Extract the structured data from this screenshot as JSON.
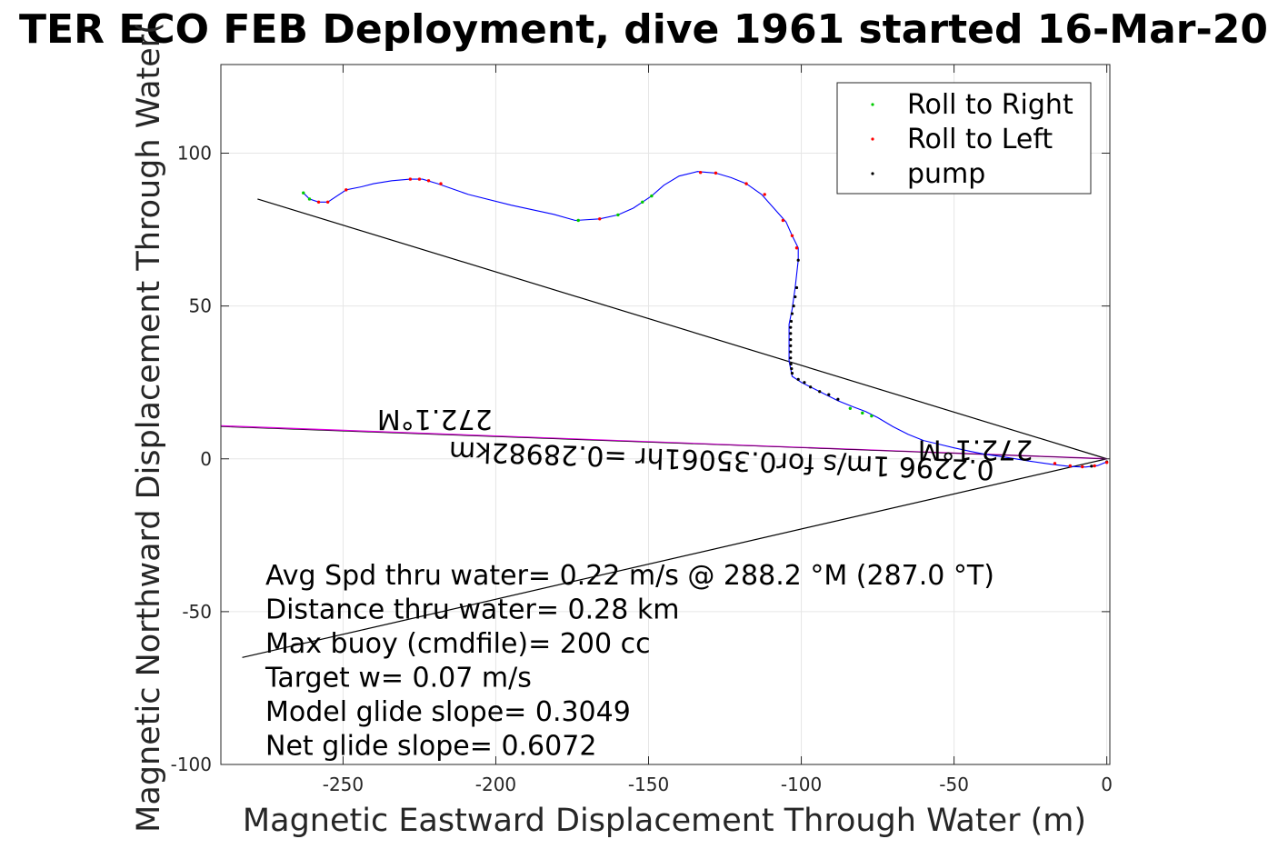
{
  "chart_data": {
    "type": "line",
    "title": "TER ECO FEB Deployment, dive 1961 started 16-Mar-20",
    "xlabel": "Magnetic Eastward Displacement Through Water (m)",
    "ylabel": "Magnetic Northward Displacement Through Water(",
    "xlim": [
      -290,
      1
    ],
    "ylim": [
      -100,
      129
    ],
    "xticks": [
      -250,
      -200,
      -150,
      -100,
      -50,
      0
    ],
    "yticks": [
      -100,
      -50,
      0,
      50,
      100
    ],
    "xtick_labels": [
      "-250",
      "-200",
      "-150",
      "-100",
      "-50",
      "0"
    ],
    "ytick_labels": [
      "-100",
      "-50",
      "0",
      "50",
      "100"
    ],
    "grid": true,
    "legend": {
      "position": "top-right",
      "entries": [
        {
          "label": "Roll to Right",
          "color": "#00cc00"
        },
        {
          "label": "Roll to Left",
          "color": "#ff0000"
        },
        {
          "label": "pump",
          "color": "#000000"
        }
      ]
    },
    "track": [
      [
        -263,
        87
      ],
      [
        -261,
        85
      ],
      [
        -258,
        84
      ],
      [
        -255,
        84
      ],
      [
        -249,
        88
      ],
      [
        -244,
        89
      ],
      [
        -240,
        90
      ],
      [
        -234,
        91
      ],
      [
        -228,
        91.5
      ],
      [
        -224,
        91.5
      ],
      [
        -219,
        90
      ],
      [
        -209,
        86.5
      ],
      [
        -195,
        83
      ],
      [
        -181,
        80
      ],
      [
        -174,
        78
      ],
      [
        -166,
        78.5
      ],
      [
        -160,
        79.8
      ],
      [
        -155,
        82
      ],
      [
        -152,
        84
      ],
      [
        -149,
        86
      ],
      [
        -145,
        89.5
      ],
      [
        -140,
        92.5
      ],
      [
        -134,
        94
      ],
      [
        -128,
        93.5
      ],
      [
        -123,
        92
      ],
      [
        -118,
        90
      ],
      [
        -113,
        86.5
      ],
      [
        -109,
        82
      ],
      [
        -105,
        77.5
      ],
      [
        -103,
        73
      ],
      [
        -101,
        69
      ],
      [
        -101,
        65
      ],
      [
        -102,
        56
      ],
      [
        -103,
        49
      ],
      [
        -104,
        44
      ],
      [
        -104,
        38
      ],
      [
        -104,
        32
      ],
      [
        -103,
        27
      ],
      [
        -100,
        25
      ],
      [
        -96,
        23
      ],
      [
        -92,
        21
      ],
      [
        -88,
        19
      ],
      [
        -83,
        17
      ],
      [
        -79,
        15.5
      ],
      [
        -75,
        13.5
      ],
      [
        -70,
        10.5
      ],
      [
        -65,
        8
      ],
      [
        -60,
        6
      ],
      [
        -55,
        4.8
      ],
      [
        -50,
        3.6
      ],
      [
        -45,
        2.5
      ],
      [
        -40,
        1.5
      ],
      [
        -33,
        0.5
      ],
      [
        -25,
        -0.8
      ],
      [
        -18,
        -1.8
      ],
      [
        -12,
        -2.5
      ],
      [
        -7,
        -2.7
      ],
      [
        -3,
        -2.2
      ],
      [
        0,
        -1
      ]
    ],
    "roll_right_points": [
      [
        -263,
        87
      ],
      [
        -261,
        85
      ],
      [
        -173,
        78
      ],
      [
        -160,
        79.8
      ],
      [
        -152,
        84
      ],
      [
        -149,
        86
      ],
      [
        -84,
        16.5
      ],
      [
        -80,
        15
      ],
      [
        -77,
        14
      ]
    ],
    "roll_left_points": [
      [
        -258,
        84
      ],
      [
        -255,
        84
      ],
      [
        -249,
        88
      ],
      [
        -228,
        91.5
      ],
      [
        -225,
        91.5
      ],
      [
        -222,
        91
      ],
      [
        -218,
        90
      ],
      [
        -166,
        78.5
      ],
      [
        -133,
        93.7
      ],
      [
        -128,
        93.5
      ],
      [
        -118,
        90
      ],
      [
        -112,
        86.5
      ],
      [
        -106,
        78
      ],
      [
        -103,
        73
      ],
      [
        -101.5,
        69
      ],
      [
        -17,
        -1.5
      ],
      [
        -12,
        -2.3
      ],
      [
        -8,
        -2.6
      ],
      [
        -4,
        -2.3
      ],
      [
        0,
        -1.2
      ]
    ],
    "pump_points": [
      [
        -101,
        65
      ],
      [
        -101.5,
        56
      ],
      [
        -102,
        53
      ],
      [
        -102.5,
        50
      ],
      [
        -103,
        47.5
      ],
      [
        -103.3,
        45
      ],
      [
        -103.5,
        43
      ],
      [
        -103.5,
        41
      ],
      [
        -103.5,
        39
      ],
      [
        -103.5,
        37
      ],
      [
        -103.5,
        35
      ],
      [
        -103.5,
        33
      ],
      [
        -103.4,
        31
      ],
      [
        -103.2,
        29.5
      ],
      [
        -103,
        28
      ],
      [
        -101,
        26
      ],
      [
        -99,
        25
      ],
      [
        -97,
        23.5
      ],
      [
        -94,
        22
      ],
      [
        -91,
        21
      ],
      [
        -88,
        19.5
      ],
      [
        -5,
        -2.4
      ],
      [
        0,
        -1
      ]
    ],
    "black_lines": [
      {
        "from": [
          -278,
          85
        ],
        "to": [
          0,
          0
        ]
      },
      {
        "from": [
          -283,
          -65
        ],
        "to": [
          0,
          0
        ]
      }
    ],
    "magenta_line": {
      "from": [
        -290,
        10.8
      ],
      "to": [
        0,
        0
      ]
    },
    "annotations": [
      {
        "text": "272.1°M",
        "x": -220,
        "y": 16,
        "rotation": 180
      },
      {
        "text": "272.1°M",
        "x": -43,
        "y": 6,
        "rotation": 180
      },
      {
        "text": "0.2296  1m/s for0.35061hr =0.28982km",
        "x": -126,
        "y": 2.5,
        "rotation": 182
      }
    ],
    "stats": [
      "Avg Spd thru water=  0.22 m/s @ 288.2 °M (287.0 °T)",
      "Distance thru water=  0.28 km",
      "Max buoy (cmdfile)= 200 cc",
      "Target w= 0.07 m/s",
      "Model glide slope= 0.3049",
      "Net glide slope= 0.6072"
    ]
  }
}
